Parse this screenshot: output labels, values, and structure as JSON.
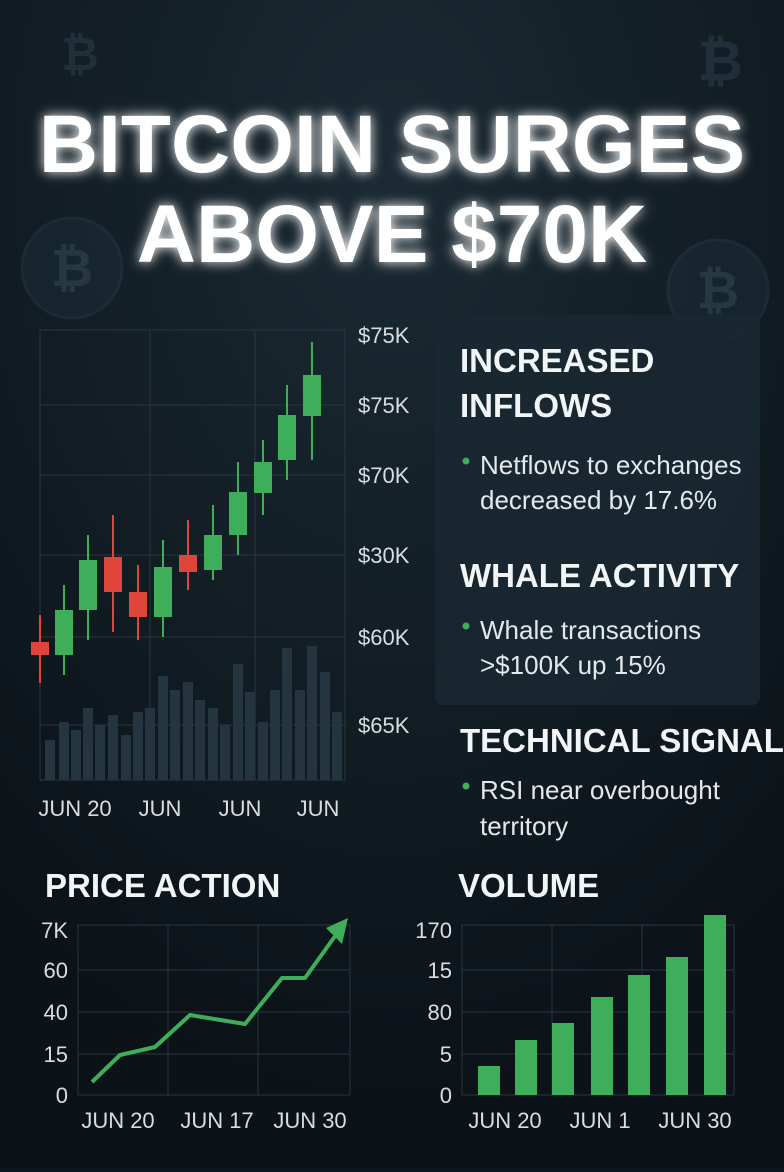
{
  "title": [
    "BITCOIN SURGES",
    "ABOVE $70K"
  ],
  "main_chart": {
    "y_labels": [
      "$75K",
      "$75K",
      "$70K",
      "$30K",
      "$60K",
      "$65K"
    ],
    "x_labels": [
      "JUN 20",
      "JUN",
      "JUN",
      "JUN"
    ]
  },
  "panel": [
    {
      "heading": [
        "INCREASED",
        "INFLOWS"
      ],
      "bullet": [
        "Netflows to exchanges",
        "decreased by 17.6%"
      ]
    },
    {
      "heading": [
        "WHALE ACTIVITY"
      ],
      "bullet": [
        "Whale transactions",
        ">$100K up 15%"
      ]
    },
    {
      "heading": [
        "TECHNICAL SIGNALS"
      ],
      "bullet": [
        "RSI near overbought",
        "territory"
      ]
    }
  ],
  "price_action": {
    "title": "PRICE ACTION",
    "y_labels": [
      "7K",
      "60",
      "40",
      "15",
      "0"
    ],
    "x_labels": [
      "JUN 20",
      "JUN 17",
      "JUN 30"
    ]
  },
  "volume": {
    "title": "VOLUME",
    "y_labels": [
      "170",
      "15",
      "80",
      "5",
      "0"
    ],
    "x_labels": [
      "JUN 20",
      "JUN 1",
      "JUN 30"
    ]
  }
}
